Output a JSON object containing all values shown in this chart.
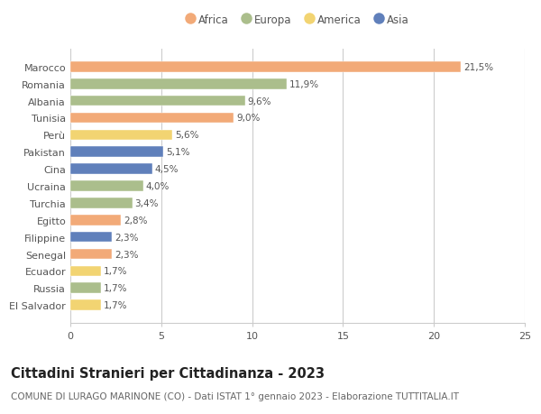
{
  "categories": [
    "Marocco",
    "Romania",
    "Albania",
    "Tunisia",
    "Perù",
    "Pakistan",
    "Cina",
    "Ucraina",
    "Turchia",
    "Egitto",
    "Filippine",
    "Senegal",
    "Ecuador",
    "Russia",
    "El Salvador"
  ],
  "values": [
    21.5,
    11.9,
    9.6,
    9.0,
    5.6,
    5.1,
    4.5,
    4.0,
    3.4,
    2.8,
    2.3,
    2.3,
    1.7,
    1.7,
    1.7
  ],
  "labels": [
    "21,5%",
    "11,9%",
    "9,6%",
    "9,0%",
    "5,6%",
    "5,1%",
    "4,5%",
    "4,0%",
    "3,4%",
    "2,8%",
    "2,3%",
    "2,3%",
    "1,7%",
    "1,7%",
    "1,7%"
  ],
  "continents": [
    "Africa",
    "Europa",
    "Europa",
    "Africa",
    "America",
    "Asia",
    "Asia",
    "Europa",
    "Europa",
    "Africa",
    "Asia",
    "Africa",
    "America",
    "Europa",
    "America"
  ],
  "continent_colors": {
    "Africa": "#F2AA78",
    "Europa": "#ABBE8C",
    "America": "#F2D472",
    "Asia": "#6080BB"
  },
  "legend_order": [
    "Africa",
    "Europa",
    "America",
    "Asia"
  ],
  "xlim": [
    0,
    25
  ],
  "xticks": [
    0,
    5,
    10,
    15,
    20,
    25
  ],
  "title": "Cittadini Stranieri per Cittadinanza - 2023",
  "subtitle": "COMUNE DI LURAGO MARINONE (CO) - Dati ISTAT 1° gennaio 2023 - Elaborazione TUTTITALIA.IT",
  "background_color": "#ffffff",
  "grid_color": "#cccccc",
  "bar_height": 0.62,
  "title_fontsize": 10.5,
  "subtitle_fontsize": 7.5,
  "label_fontsize": 7.5,
  "tick_fontsize": 8,
  "legend_fontsize": 8.5
}
